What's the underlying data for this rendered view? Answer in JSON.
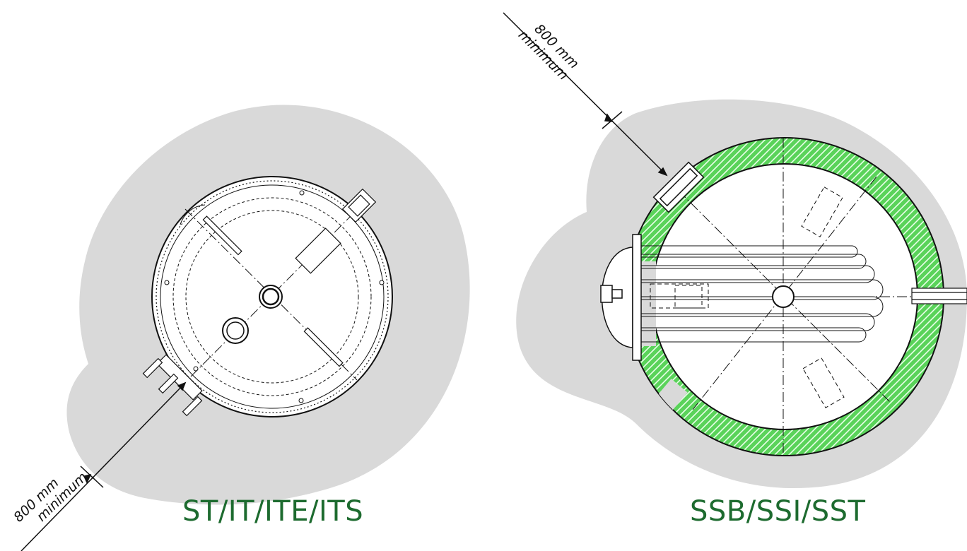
{
  "left_tank": {
    "caption": "ST/IT/ITE/ITS",
    "clearance": {
      "distance": "800 mm",
      "qualifier": "minimum"
    }
  },
  "right_tank": {
    "caption": "SSB/SSI/SST",
    "clearance": {
      "distance": "800 mm",
      "qualifier": "minimum"
    }
  },
  "colors": {
    "clearance_zone": "#d9d9d9",
    "insulation": "#4cd14c",
    "caption": "#1d6b2f",
    "line": "#111111"
  }
}
